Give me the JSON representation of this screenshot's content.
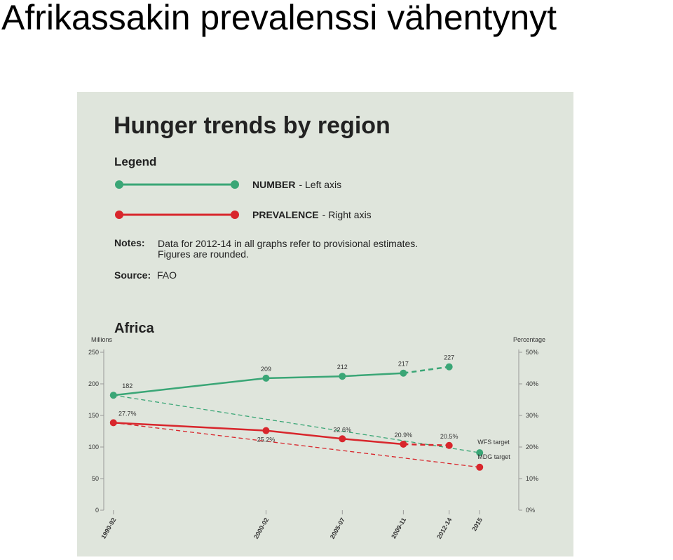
{
  "header": {
    "title": "Afrikassakin prevalenssi vähentynyt"
  },
  "panel": {
    "title": "Hunger trends by region",
    "legend_title": "Legend",
    "notes_label": "Notes:",
    "notes": [
      "Data for 2012-14 in all graphs refer to provisional estimates.",
      "Figures are rounded."
    ],
    "source_label": "Source:",
    "source": "FAO"
  },
  "chart_data": {
    "type": "line",
    "title": "Africa",
    "y_label": "Millions",
    "y2_label": "Percentage",
    "x": [
      1991,
      2001,
      2006,
      2010,
      2013
    ],
    "xlim": [
      1990,
      2016
    ],
    "xticks": [
      {
        "value": 1991,
        "label": "1990-92"
      },
      {
        "value": 2001,
        "label": "2000-02"
      },
      {
        "value": 2006,
        "label": "2005-07"
      },
      {
        "value": 2010,
        "label": "2009-11"
      },
      {
        "value": 2013,
        "label": "2012-14"
      },
      {
        "value": 2015,
        "label": "2015"
      }
    ],
    "ylim": [
      0,
      250
    ],
    "yticks": [
      0,
      50,
      100,
      150,
      200,
      250
    ],
    "y2lim": [
      0,
      50
    ],
    "y2ticks": [
      {
        "value": 0,
        "label": "0%"
      },
      {
        "value": 10,
        "label": "10%"
      },
      {
        "value": 20,
        "label": "20%"
      },
      {
        "value": 30,
        "label": "30%"
      },
      {
        "value": 40,
        "label": "40%"
      },
      {
        "value": 50,
        "label": "50%"
      }
    ],
    "series": [
      {
        "name": "NUMBER",
        "axis_label": "- Left axis",
        "color": "#3aa676",
        "values": [
          182,
          209,
          212,
          217,
          227
        ]
      },
      {
        "name": "PREVALENCE",
        "axis_label": "- Right axis",
        "color": "#d8262c",
        "axis": "y2",
        "values": [
          27.7,
          25.2,
          22.6,
          20.9,
          20.5
        ],
        "value_labels": [
          "27.7%",
          "25.2%",
          "22.6%",
          "20.9%",
          "20.5%"
        ]
      }
    ],
    "targets": [
      {
        "name": "WFS target",
        "x": 2015,
        "value": 91,
        "series": 0
      },
      {
        "name": "MDG target",
        "x": 2015,
        "value": 13.6,
        "series": 1
      }
    ]
  }
}
